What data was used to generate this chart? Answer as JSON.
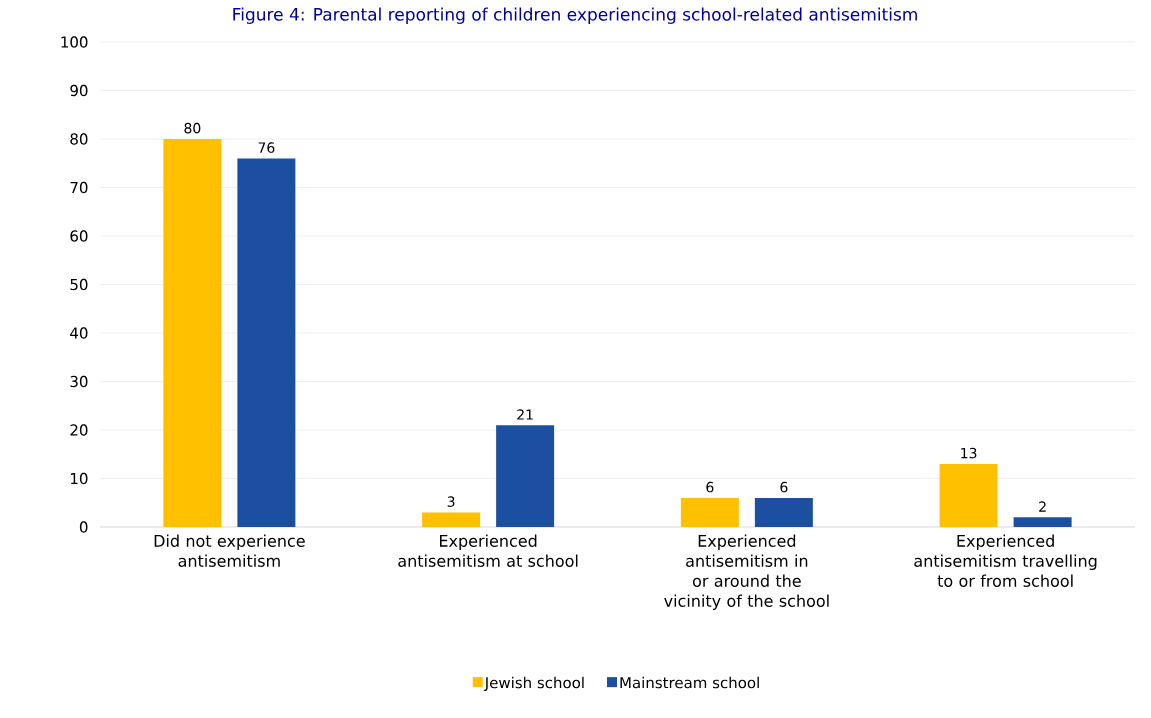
{
  "chart_data": {
    "type": "bar",
    "title": "Figure 4: Parental reporting of children experiencing school-related antisemitism",
    "categories": [
      "Did not experience antisemitism",
      "Experienced antisemitism at school",
      "Experienced antisemitism in or around the vicinity of the school",
      "Experienced antisemitism travelling to or from school"
    ],
    "series": [
      {
        "name": "Jewish school",
        "color": "#ffc000",
        "values": [
          80,
          3,
          6,
          13
        ]
      },
      {
        "name": "Mainstream school",
        "color": "#1c4fa0",
        "values": [
          76,
          21,
          6,
          2
        ]
      }
    ],
    "ylim": [
      0,
      100
    ],
    "yticks": [
      0,
      10,
      20,
      30,
      40,
      50,
      60,
      70,
      80,
      90,
      100
    ],
    "grid": "y",
    "legend": "bottom",
    "data_labels": true
  }
}
